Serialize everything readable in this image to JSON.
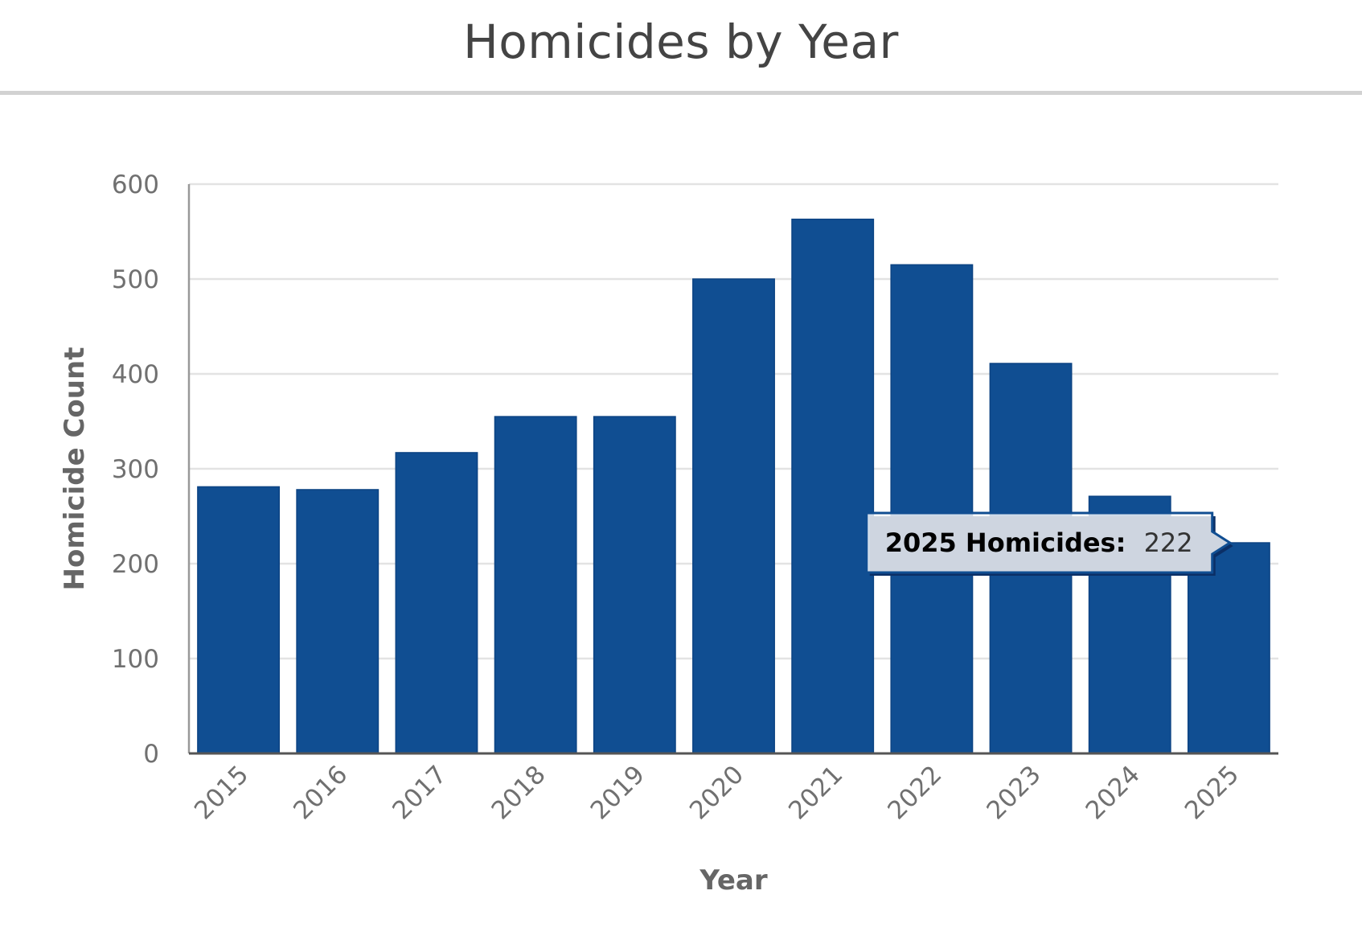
{
  "chart_data": {
    "type": "bar",
    "title": "Homicides by Year",
    "xlabel": "Year",
    "ylabel": "Homicide Count",
    "categories": [
      "2015",
      "2016",
      "2017",
      "2018",
      "2019",
      "2020",
      "2021",
      "2022",
      "2023",
      "2024",
      "2025"
    ],
    "values": [
      281,
      278,
      317,
      355,
      355,
      500,
      563,
      515,
      411,
      271,
      222
    ],
    "ylim": [
      0,
      600
    ],
    "yticks": [
      "0",
      "100",
      "200",
      "300",
      "400",
      "500",
      "600"
    ],
    "grid": true,
    "bar_color": "#104e92",
    "tooltip": {
      "category_index": 10,
      "label": "2025 Homicides:",
      "value": "222"
    }
  }
}
